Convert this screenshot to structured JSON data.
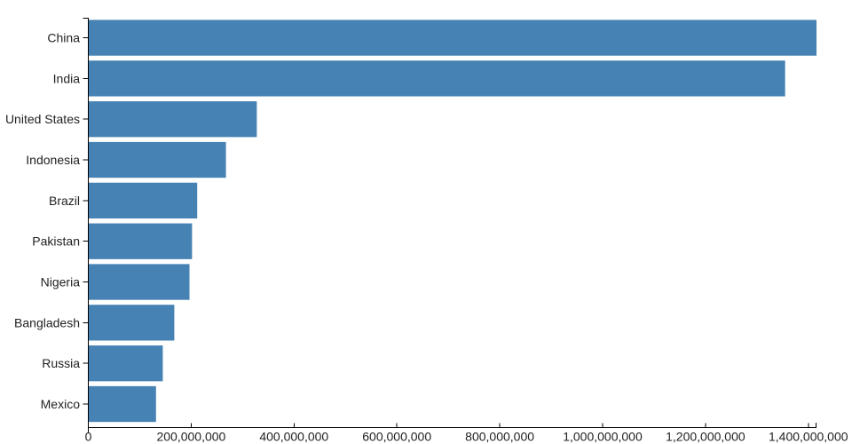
{
  "chart_data": {
    "type": "bar",
    "orientation": "horizontal",
    "title": "",
    "xlabel": "",
    "ylabel": "",
    "categories": [
      "China",
      "India",
      "United States",
      "Indonesia",
      "Brazil",
      "Pakistan",
      "Nigeria",
      "Bangladesh",
      "Russia",
      "Mexico"
    ],
    "values": [
      1415045928,
      1354051854,
      326766748,
      266794980,
      210867954,
      200813818,
      195875237,
      166368149,
      143964709,
      130759074
    ],
    "xlim": [
      0,
      1415045928
    ],
    "x_ticks": [
      0,
      200000000,
      400000000,
      600000000,
      800000000,
      1000000000,
      1200000000,
      1400000000
    ],
    "x_tick_labels": [
      "0",
      "200,000,000",
      "400,000,000",
      "600,000,000",
      "800,000,000",
      "1,000,000,000",
      "1,200,000,000",
      "1,400,000,000"
    ],
    "grid": false,
    "legend": null,
    "colors": {
      "bar": "#4682b4",
      "axis": "#000000",
      "text": "#222222"
    }
  }
}
